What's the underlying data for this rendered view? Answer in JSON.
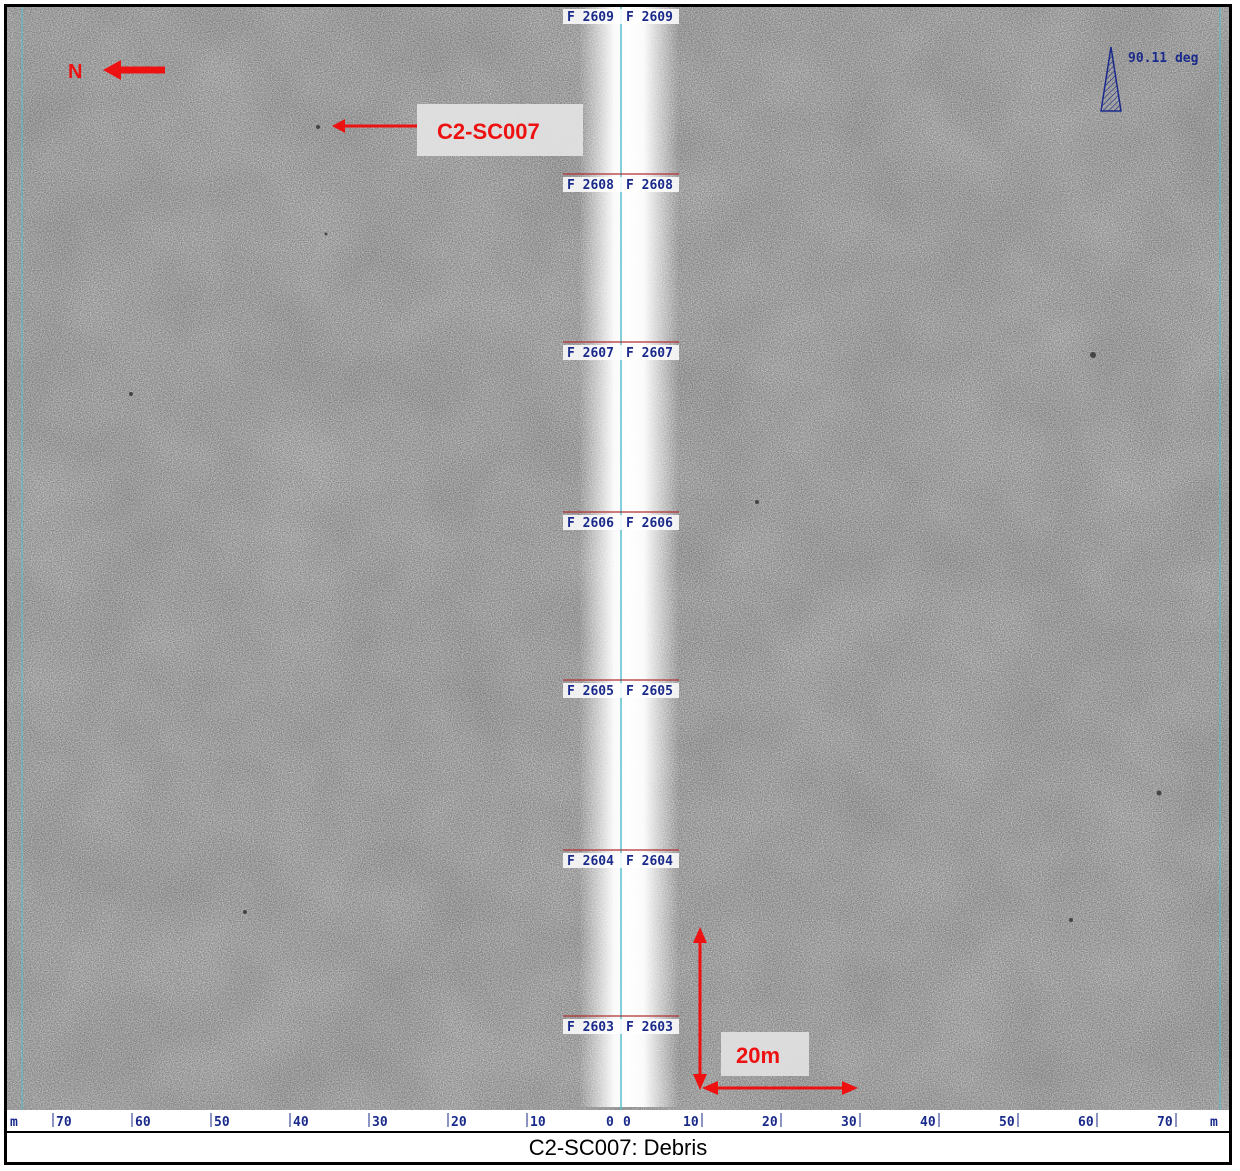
{
  "north_label": "N",
  "target_label": "C2-SC007",
  "heading_label": "90.11 deg",
  "scale_bar_label": "20m",
  "caption": "C2-SC007: Debris",
  "fix_labels": [
    "F 2609",
    "F 2608",
    "F 2607",
    "F 2606",
    "F 2605",
    "F 2604",
    "F 2603"
  ],
  "left_scale": {
    "unit": "m",
    "ticks": [
      "70",
      "60",
      "50",
      "40",
      "30",
      "20",
      "10",
      "0"
    ]
  },
  "right_scale": {
    "unit": "m",
    "ticks": [
      "0",
      "10",
      "20",
      "30",
      "40",
      "50",
      "60",
      "70"
    ]
  },
  "colors": {
    "annotation_red": "#ee1111",
    "fix_text_blue": "#1a2a8a",
    "fix_line_red": "#b03030",
    "track_line_cyan": "#58c0cc",
    "seabed_gray": "#e6e6e6"
  },
  "icons": [
    "north-arrow-icon",
    "heading-indicator-icon"
  ]
}
